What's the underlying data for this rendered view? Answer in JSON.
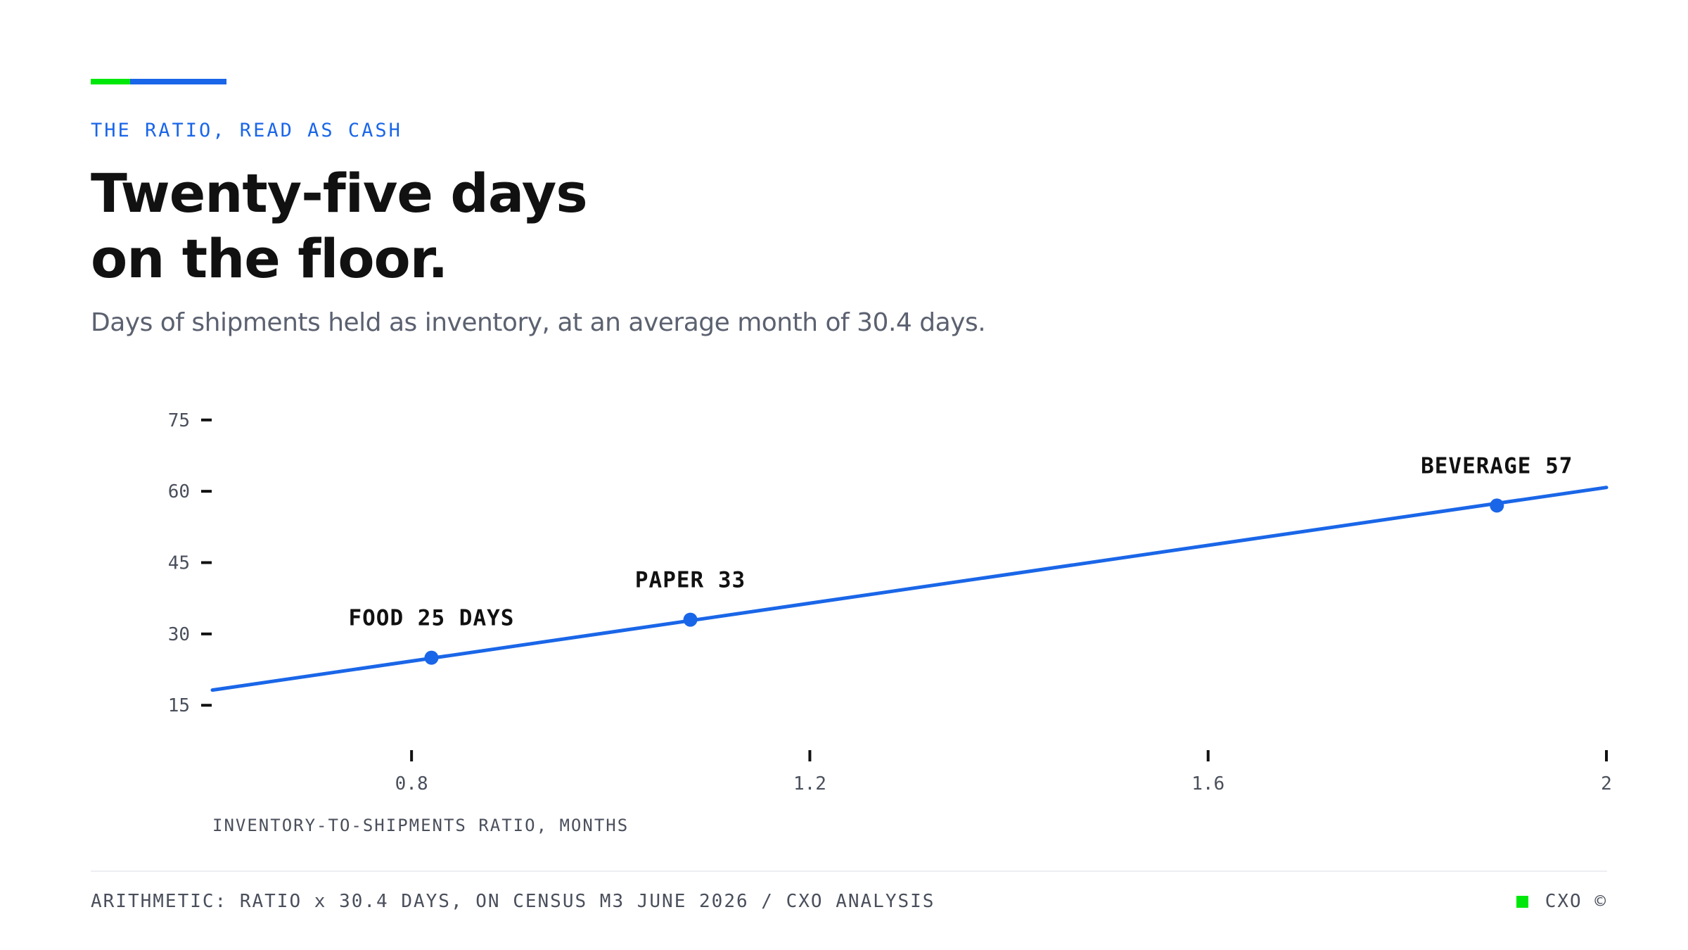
{
  "header": {
    "kicker": "THE RATIO, READ AS CASH",
    "headline_line1": "Twenty-five days",
    "headline_line2": "on the floor.",
    "subtitle": "Days of shipments held as inventory, at an average month of 30.4 days."
  },
  "footer": {
    "source": "ARITHMETIC: RATIO x 30.4 DAYS, ON CENSUS M3 JUNE 2026 / CXO ANALYSIS",
    "brand": "CXO ©"
  },
  "colors": {
    "accent_green": "#00e80b",
    "accent_blue": "#1a66e8",
    "line": "#1a66e8"
  },
  "chart_data": {
    "type": "line",
    "title": "",
    "xlabel": "INVENTORY-TO-SHIPMENTS RATIO, MONTHS",
    "ylabel": "",
    "xlim": [
      0.6,
      2.0
    ],
    "ylim": [
      10,
      80
    ],
    "xticks": [
      0.8,
      1.2,
      1.6,
      2.0
    ],
    "xtick_labels": [
      "0.8",
      "1.2",
      "1.6",
      "2"
    ],
    "yticks": [
      15,
      30,
      45,
      60,
      75
    ],
    "ytick_labels": [
      "15",
      "30",
      "45",
      "60",
      "75"
    ],
    "grid": false,
    "series": [
      {
        "x": [
          0.6,
          2.0
        ],
        "y": [
          18.2,
          60.8
        ]
      }
    ],
    "points": [
      {
        "label": "FOOD 25 DAYS",
        "x": 0.82,
        "y": 25
      },
      {
        "label": "PAPER 33",
        "x": 1.08,
        "y": 33
      },
      {
        "label": "BEVERAGE 57",
        "x": 1.89,
        "y": 57
      }
    ]
  }
}
